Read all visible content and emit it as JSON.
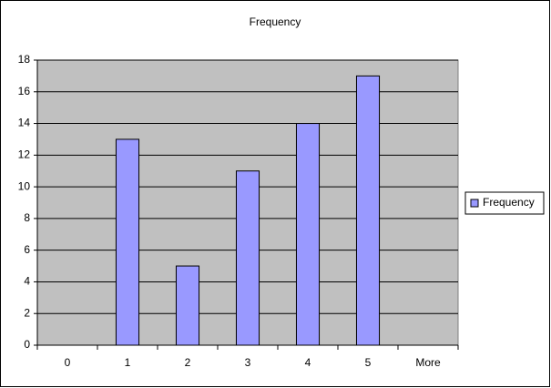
{
  "chart_data": {
    "type": "bar",
    "title": "Frequency",
    "categories": [
      "0",
      "1",
      "2",
      "3",
      "4",
      "5",
      "More"
    ],
    "series": [
      {
        "name": "Frequency",
        "color": "#9999ff",
        "values": [
          0,
          13,
          5,
          11,
          14,
          17,
          0
        ]
      }
    ],
    "ylim": [
      0,
      18
    ],
    "yticks": [
      0,
      2,
      4,
      6,
      8,
      10,
      12,
      14,
      16,
      18
    ],
    "grid": true,
    "legend": "right"
  }
}
